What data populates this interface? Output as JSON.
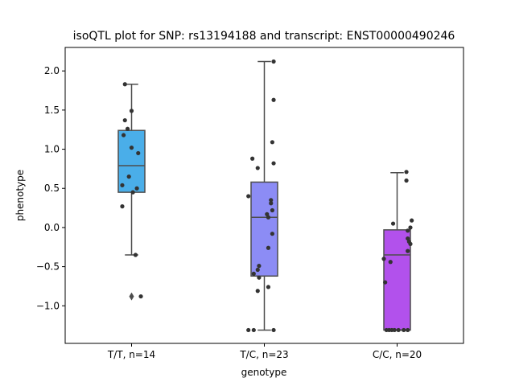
{
  "chart_data": {
    "type": "box",
    "title": "isoQTL plot for SNP: rs13194188 and transcript: ENST00000490246",
    "xlabel": "genotype",
    "ylabel": "phenotype",
    "ylim": [
      -1.48,
      2.3
    ],
    "yticks": [
      {
        "value": 2.0,
        "label": "2.0"
      },
      {
        "value": 1.5,
        "label": "1.5"
      },
      {
        "value": 1.0,
        "label": "1.0"
      },
      {
        "value": 0.5,
        "label": "0.5"
      },
      {
        "value": 0.0,
        "label": "0.0"
      },
      {
        "value": -0.5,
        "label": "−0.5"
      },
      {
        "value": -1.0,
        "label": "−1.0"
      }
    ],
    "categories": [
      "T/T, n=14",
      "T/C, n=23",
      "C/C, n=20"
    ],
    "boxes": [
      {
        "category": "T/T, n=14",
        "color": "#4aaee9",
        "whisker_low": -0.35,
        "q1": 0.45,
        "median": 0.79,
        "q3": 1.24,
        "whisker_high": 1.83,
        "outliers": [
          -0.88
        ],
        "points": [
          {
            "dx": -0.05,
            "y": 1.83
          },
          {
            "dx": -0.05,
            "y": 1.37
          },
          {
            "dx": -0.03,
            "y": 1.26
          },
          {
            "dx": -0.06,
            "y": 1.18
          },
          {
            "dx": 0.0,
            "y": 1.49
          },
          {
            "dx": 0.0,
            "y": 1.02
          },
          {
            "dx": 0.05,
            "y": 0.95
          },
          {
            "dx": -0.02,
            "y": 0.65
          },
          {
            "dx": -0.07,
            "y": 0.54
          },
          {
            "dx": 0.04,
            "y": 0.5
          },
          {
            "dx": 0.01,
            "y": 0.45
          },
          {
            "dx": -0.07,
            "y": 0.27
          },
          {
            "dx": 0.03,
            "y": -0.35
          },
          {
            "dx": 0.07,
            "y": -0.88
          }
        ]
      },
      {
        "category": "T/C, n=23",
        "color": "#8c8cf5",
        "whisker_low": -1.31,
        "q1": -0.62,
        "median": 0.13,
        "q3": 0.58,
        "whisker_high": 2.12,
        "outliers": [],
        "points": [
          {
            "dx": 0.07,
            "y": 2.12
          },
          {
            "dx": 0.07,
            "y": 1.63
          },
          {
            "dx": 0.06,
            "y": 1.09
          },
          {
            "dx": -0.09,
            "y": 0.88
          },
          {
            "dx": 0.07,
            "y": 0.82
          },
          {
            "dx": -0.05,
            "y": 0.76
          },
          {
            "dx": -0.12,
            "y": 0.4
          },
          {
            "dx": 0.05,
            "y": 0.35
          },
          {
            "dx": 0.05,
            "y": 0.31
          },
          {
            "dx": 0.06,
            "y": 0.22
          },
          {
            "dx": 0.02,
            "y": 0.17
          },
          {
            "dx": 0.03,
            "y": 0.13
          },
          {
            "dx": 0.06,
            "y": -0.08
          },
          {
            "dx": 0.03,
            "y": -0.26
          },
          {
            "dx": -0.04,
            "y": -0.49
          },
          {
            "dx": -0.05,
            "y": -0.54
          },
          {
            "dx": -0.08,
            "y": -0.59
          },
          {
            "dx": -0.04,
            "y": -0.64
          },
          {
            "dx": 0.03,
            "y": -0.76
          },
          {
            "dx": -0.05,
            "y": -0.81
          },
          {
            "dx": -0.12,
            "y": -1.31
          },
          {
            "dx": -0.08,
            "y": -1.31
          },
          {
            "dx": 0.07,
            "y": -1.31
          }
        ]
      },
      {
        "category": "C/C, n=20",
        "color": "#b251ec",
        "whisker_low": -1.31,
        "q1": -1.31,
        "median": -0.35,
        "q3": -0.03,
        "whisker_high": 0.7,
        "outliers": [],
        "points": [
          {
            "dx": 0.07,
            "y": 0.71
          },
          {
            "dx": 0.07,
            "y": 0.6
          },
          {
            "dx": 0.11,
            "y": 0.09
          },
          {
            "dx": -0.03,
            "y": 0.05
          },
          {
            "dx": 0.1,
            "y": 0.0
          },
          {
            "dx": 0.08,
            "y": -0.04
          },
          {
            "dx": 0.08,
            "y": -0.14
          },
          {
            "dx": 0.09,
            "y": -0.18
          },
          {
            "dx": 0.1,
            "y": -0.21
          },
          {
            "dx": 0.08,
            "y": -0.3
          },
          {
            "dx": -0.1,
            "y": -0.4
          },
          {
            "dx": -0.05,
            "y": -0.44
          },
          {
            "dx": -0.09,
            "y": -0.7
          },
          {
            "dx": -0.08,
            "y": -1.31
          },
          {
            "dx": -0.06,
            "y": -1.31
          },
          {
            "dx": -0.04,
            "y": -1.31
          },
          {
            "dx": -0.02,
            "y": -1.31
          },
          {
            "dx": 0.01,
            "y": -1.31
          },
          {
            "dx": 0.08,
            "y": -1.31
          },
          {
            "dx": 0.05,
            "y": -1.31
          }
        ]
      }
    ],
    "colors": {
      "box_edge": "#4d4d4d",
      "point": "#333333",
      "axis": "#000000"
    },
    "grid": false,
    "legend": "none"
  }
}
